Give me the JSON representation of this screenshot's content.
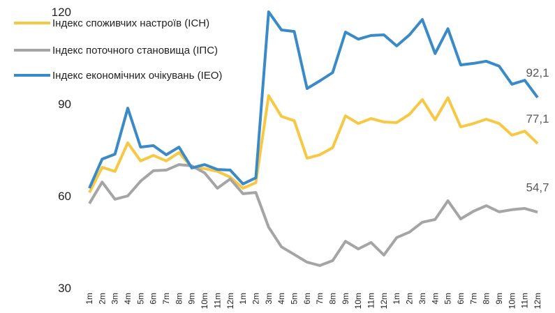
{
  "chart_data": {
    "type": "line",
    "categories": [
      "1m",
      "2m",
      "3m",
      "4m",
      "5m",
      "6m",
      "7m",
      "8m",
      "9m",
      "10m",
      "11m",
      "12m",
      "1m",
      "2m",
      "3m",
      "4m",
      "5m",
      "6m",
      "7m",
      "8m",
      "9m",
      "10m",
      "11m",
      "12m",
      "1m",
      "2m",
      "3m",
      "4m",
      "5m",
      "6m",
      "7m",
      "8m",
      "9m",
      "10m",
      "11m",
      "12m"
    ],
    "ylim": [
      30,
      120
    ],
    "yticks": [
      30,
      60,
      90,
      120
    ],
    "grid": false,
    "legend": "top-left",
    "series": [
      {
        "name": "Індекс споживчих настроїв (ІСН)",
        "color": "#f7c843",
        "values": [
          61.1,
          69.3,
          68,
          77.3,
          71.4,
          73.2,
          71.4,
          74.1,
          69.3,
          68.9,
          68,
          66.1,
          62.5,
          64.3,
          92.7,
          85.9,
          84.5,
          72.3,
          73.4,
          75.7,
          86.1,
          83.6,
          85.2,
          84.1,
          83.9,
          86.6,
          91.4,
          84.8,
          92,
          82.5,
          83.6,
          85,
          83.6,
          79.8,
          81.1,
          77.1
        ],
        "value_labels": [
          null,
          null,
          null,
          null,
          null,
          null,
          null,
          null,
          null,
          null,
          null,
          null,
          null,
          null,
          null,
          null,
          null,
          null,
          null,
          null,
          null,
          null,
          null,
          null,
          null,
          null,
          null,
          null,
          null,
          null,
          null,
          null,
          null,
          null,
          null,
          "77,1"
        ]
      },
      {
        "name": "Індекс поточного становища (ІПС)",
        "color": "#a5a5a5",
        "values": [
          57.5,
          64.5,
          58.9,
          60,
          64.8,
          68.2,
          68.4,
          70.2,
          69.8,
          67.5,
          62.5,
          65.5,
          60.7,
          61.1,
          49.8,
          43.4,
          40.9,
          38.4,
          37.3,
          38.9,
          45.2,
          42.7,
          44.8,
          40.7,
          46.4,
          48.2,
          51.4,
          52.3,
          58.4,
          52.5,
          55,
          56.8,
          54.8,
          55.5,
          55.9,
          54.7
        ],
        "value_labels": [
          null,
          null,
          null,
          null,
          null,
          null,
          null,
          null,
          null,
          null,
          null,
          null,
          null,
          null,
          null,
          null,
          null,
          null,
          null,
          null,
          null,
          null,
          null,
          null,
          null,
          null,
          null,
          null,
          null,
          null,
          null,
          null,
          null,
          null,
          null,
          "54,7"
        ]
      },
      {
        "name": "Індекс економічних очікувань (ІЕО)",
        "color": "#3a8ac8",
        "values": [
          62.5,
          72,
          73.6,
          88.6,
          75.9,
          76.4,
          73.4,
          75.9,
          69.1,
          70.2,
          68.6,
          68.4,
          63.9,
          65.9,
          120,
          114.1,
          113.6,
          95,
          97.5,
          100.2,
          113.4,
          111.1,
          112.3,
          112.5,
          108.9,
          112.5,
          117.5,
          106.4,
          114.5,
          102.7,
          103.2,
          103.9,
          102.3,
          96.4,
          97.7,
          92.1
        ],
        "value_labels": [
          null,
          null,
          null,
          null,
          null,
          null,
          null,
          null,
          null,
          null,
          null,
          null,
          null,
          null,
          null,
          null,
          null,
          null,
          null,
          null,
          null,
          null,
          null,
          null,
          null,
          null,
          null,
          null,
          null,
          null,
          null,
          null,
          null,
          null,
          null,
          "92,1"
        ]
      }
    ]
  }
}
